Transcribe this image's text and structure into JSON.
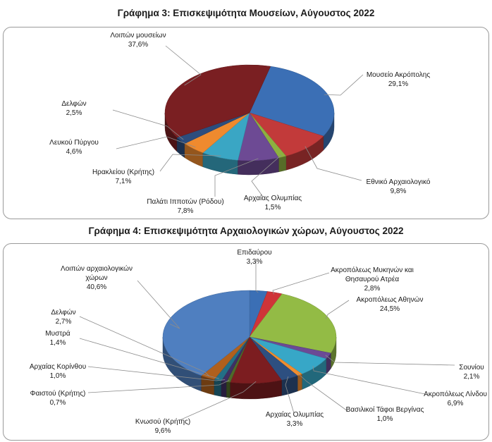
{
  "chart_data": [
    {
      "type": "pie",
      "title": "Γράφημα 3: Επισκεψιμότητα Μουσείων, Αύγουστος 2022",
      "slices": [
        {
          "name": [
            "Μουσείο Ακρόπολης"
          ],
          "label": "29,1%",
          "value": 29.1,
          "color": "#3b6fb5"
        },
        {
          "name": [
            "Εθνικό Αρχαιολογικό"
          ],
          "label": "9,8%",
          "value": 9.8,
          "color": "#c23a3a"
        },
        {
          "name": [
            "Αρχαίας Ολυμπίας"
          ],
          "label": "1,5%",
          "value": 1.5,
          "color": "#8db040"
        },
        {
          "name": [
            "Παλάτι Ιπποτών (Ρόδου)"
          ],
          "label": "7,8%",
          "value": 7.8,
          "color": "#6d4a94"
        },
        {
          "name": [
            "Ηρακλείου (Κρήτης)"
          ],
          "label": "7,1%",
          "value": 7.1,
          "color": "#3aa6c4"
        },
        {
          "name": [
            "Λευκού Πύργου"
          ],
          "label": "4,6%",
          "value": 4.6,
          "color": "#ef8a2e"
        },
        {
          "name": [
            "Δελφών"
          ],
          "label": "2,5%",
          "value": 2.5,
          "color": "#2c4d7e"
        },
        {
          "name": [
            "Λοιπών μουσείων"
          ],
          "label": "37,6%",
          "value": 37.6,
          "color": "#7a1f22"
        }
      ]
    },
    {
      "type": "pie",
      "title": "Γράφημα 4: Επισκεψιμότητα Αρχαιολογικών χώρων, Αύγουστος 2022",
      "slices": [
        {
          "name": [
            "Επιδαύρου"
          ],
          "label": "3,3%",
          "value": 3.3,
          "color": "#3b6fb5"
        },
        {
          "name": [
            "Ακροπόλεως Μυκηνών και",
            "Θησαυρού Ατρέα"
          ],
          "label": "2,8%",
          "value": 2.8,
          "color": "#cf3438"
        },
        {
          "name": [
            "Ακροπόλεως Αθηνών"
          ],
          "label": "24,5%",
          "value": 24.5,
          "color": "#93bb45"
        },
        {
          "name": [
            "Σουνίου"
          ],
          "label": "2,1%",
          "value": 2.1,
          "color": "#6b4a95"
        },
        {
          "name": [
            "Ακροπόλεως Λίνδου"
          ],
          "label": "6,9%",
          "value": 6.9,
          "color": "#37a7c7"
        },
        {
          "name": [
            "Βασιλικοί Τάφοι Βεργίνας"
          ],
          "label": "1,0%",
          "value": 1.0,
          "color": "#f08d2e"
        },
        {
          "name": [
            "Αρχαίας Ολυμπίας"
          ],
          "label": "3,3%",
          "value": 3.3,
          "color": "#2d4f80"
        },
        {
          "name": [
            "Κνωσού (Κρήτης)"
          ],
          "label": "9,6%",
          "value": 9.6,
          "color": "#7c1d20"
        },
        {
          "name": [
            "Φαιστού (Κρήτης)"
          ],
          "label": "0,7%",
          "value": 0.7,
          "color": "#4f6a2a"
        },
        {
          "name": [
            "Αρχαίας Κορίνθου"
          ],
          "label": "1,0%",
          "value": 1.0,
          "color": "#3f2f63"
        },
        {
          "name": [
            "Μυστρά"
          ],
          "label": "1,4%",
          "value": 1.4,
          "color": "#236f86"
        },
        {
          "name": [
            "Δελφών"
          ],
          "label": "2,7%",
          "value": 2.7,
          "color": "#b0601d"
        },
        {
          "name": [
            "Λοιπών αρχαιολογικών",
            "χώρων"
          ],
          "label": "40,6%",
          "value": 40.6,
          "color": "#4f7fc0"
        }
      ]
    }
  ]
}
